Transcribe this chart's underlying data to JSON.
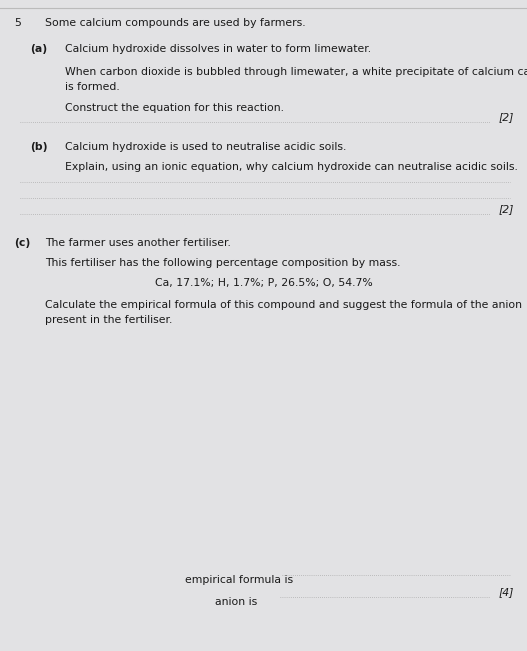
{
  "bg_color": "#c8c8c8",
  "paper_color": "#e2e2e4",
  "text_color": "#1a1a1a",
  "question_number": "5",
  "intro": "Some calcium compounds are used by farmers.",
  "part_a_label": "(a)",
  "part_a_intro": "Calcium hydroxide dissolves in water to form limewater.",
  "part_a_body1": "When carbon dioxide is bubbled through limewater, a white precipitate of calcium carbonate",
  "part_a_body2": "is formed.",
  "part_a_instruction": "Construct the equation for this reaction.",
  "part_a_mark": "[2]",
  "part_b_label": "(b)",
  "part_b_intro": "Calcium hydroxide is used to neutralise acidic soils.",
  "part_b_instruction": "Explain, using an ionic equation, why calcium hydroxide can neutralise acidic soils.",
  "part_b_mark": "[2]",
  "part_c_label": "(c)",
  "part_c_intro": "The farmer uses another fertiliser.",
  "part_c_body": "This fertiliser has the following percentage composition by mass.",
  "part_c_composition": "Ca, 17.1%; H, 1.7%; P, 26.5%; O, 54.7%",
  "part_c_inst1": "Calculate the empirical formula of this compound and suggest the formula of the anion",
  "part_c_inst2": "present in the fertiliser.",
  "part_c_mark": "[4]",
  "empirical_label": "empirical formula is",
  "anion_label": "anion is",
  "dot_line_color": "#999999",
  "font_size": 7.8,
  "font_size_small": 7.2
}
